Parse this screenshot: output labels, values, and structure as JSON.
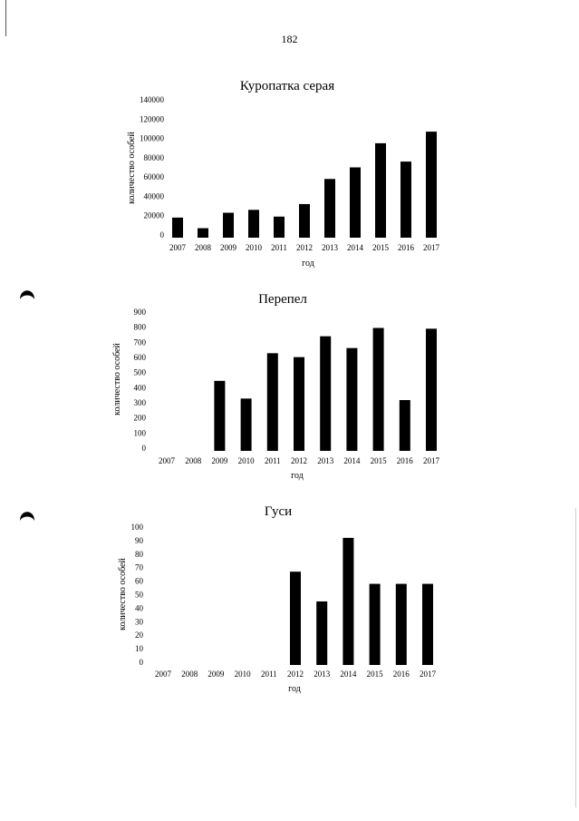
{
  "page": {
    "number": "182"
  },
  "chart_data": [
    {
      "type": "bar",
      "title": "Куропатка серая",
      "xlabel": "год",
      "ylabel": "количество особей",
      "categories": [
        "2007",
        "2008",
        "2009",
        "2010",
        "2011",
        "2012",
        "2013",
        "2014",
        "2015",
        "2016",
        "2017"
      ],
      "values": [
        18000,
        7000,
        23000,
        26000,
        19000,
        32000,
        58000,
        70000,
        95000,
        76000,
        107000
      ],
      "ylim": [
        0,
        140000
      ],
      "yticks": [
        "0",
        "20000",
        "40000",
        "60000",
        "80000",
        "100000",
        "120000",
        "140000"
      ],
      "bar_color": "#000000",
      "grid": false
    },
    {
      "type": "bar",
      "title": "Перепел",
      "xlabel": "год",
      "ylabel": "количество особей",
      "categories": [
        "2007",
        "2008",
        "2009",
        "2010",
        "2011",
        "2012",
        "2013",
        "2014",
        "2015",
        "2016",
        "2017"
      ],
      "values": [
        0,
        0,
        445,
        328,
        628,
        602,
        740,
        662,
        795,
        318,
        790
      ],
      "ylim": [
        0,
        900
      ],
      "yticks": [
        "0",
        "100",
        "200",
        "300",
        "400",
        "500",
        "600",
        "700",
        "800",
        "900"
      ],
      "bar_color": "#000000",
      "grid": false
    },
    {
      "type": "bar",
      "title": "Гуси",
      "xlabel": "год",
      "ylabel": "количество особей",
      "categories": [
        "2007",
        "2008",
        "2009",
        "2010",
        "2011",
        "2012",
        "2013",
        "2014",
        "2015",
        "2016",
        "2017"
      ],
      "values": [
        0,
        0,
        0,
        0,
        0,
        67,
        45,
        92,
        58,
        58,
        58
      ],
      "ylim": [
        0,
        100
      ],
      "yticks": [
        "0",
        "10",
        "20",
        "30",
        "40",
        "50",
        "60",
        "70",
        "80",
        "90",
        "100"
      ],
      "bar_color": "#000000",
      "grid": false
    }
  ]
}
